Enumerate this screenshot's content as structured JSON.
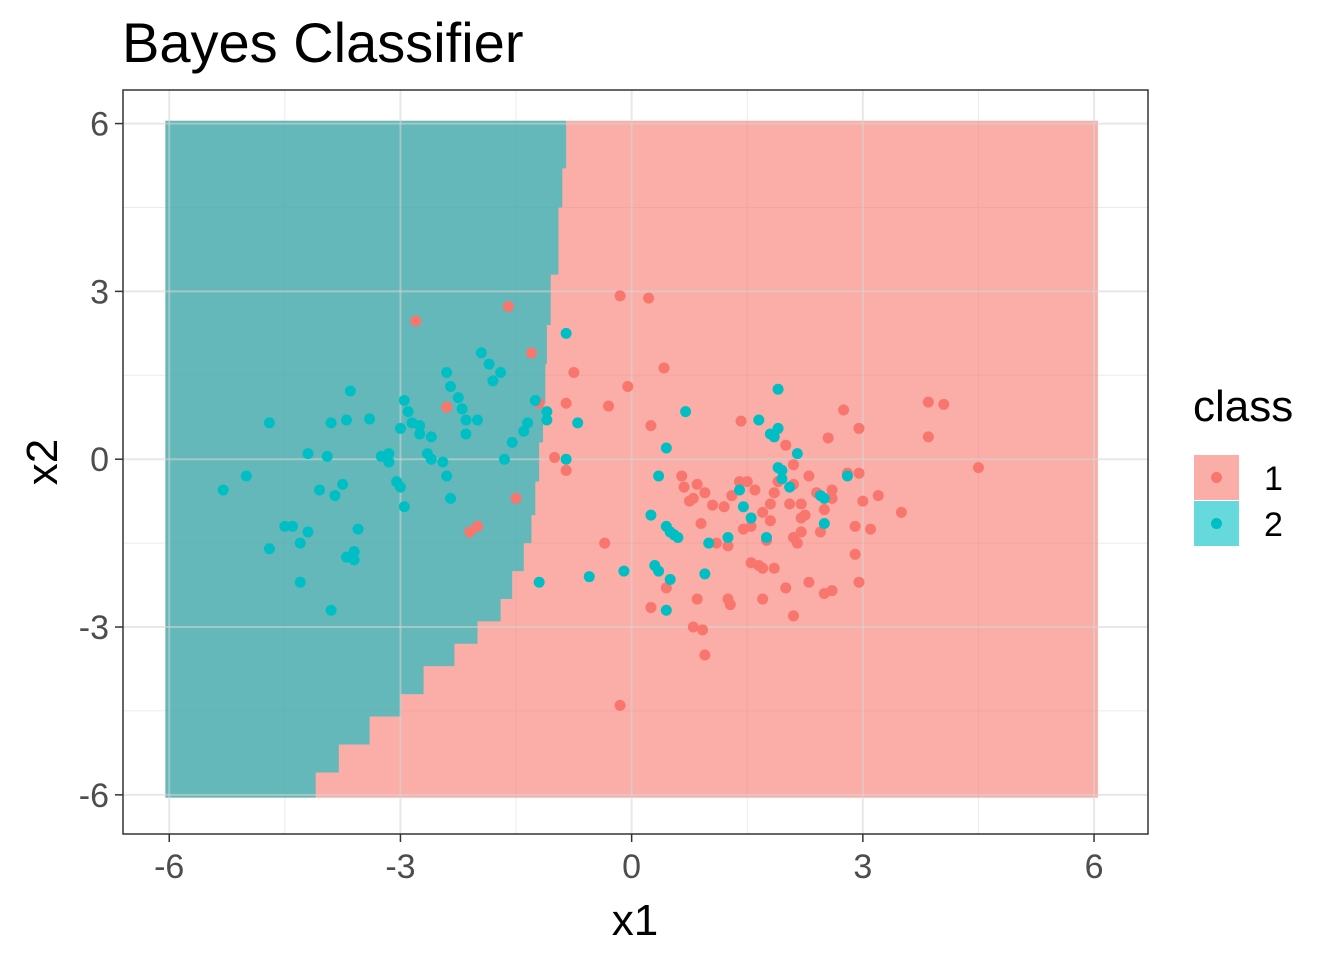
{
  "chart_data": {
    "type": "scatter",
    "title": "Bayes Classifier",
    "xlabel": "x1",
    "ylabel": "x2",
    "xlim": [
      -6.6,
      6.7
    ],
    "ylim": [
      -6.7,
      6.6
    ],
    "xticks": [
      -6,
      -3,
      0,
      3,
      6
    ],
    "yticks": [
      -6,
      -3,
      0,
      3,
      6
    ],
    "xtick_labels": [
      "-6",
      "-3",
      "0",
      "3",
      "6"
    ],
    "ytick_labels": [
      "-6",
      "-3",
      "0",
      "3",
      "6"
    ],
    "grid": true,
    "legend": {
      "title": "class",
      "position": "right",
      "entries": [
        {
          "label": "1",
          "color": "#F8766D"
        },
        {
          "label": "2",
          "color": "#00BFC4"
        }
      ]
    },
    "background_regions": {
      "extent": {
        "x": [
          -6.05,
          6.05
        ],
        "y": [
          -6.05,
          6.05
        ]
      },
      "class1_fill": "#F8766D",
      "class2_fill": "#00BFC4",
      "fill_opacity": 0.6,
      "boundary": [
        [
          -4.1,
          -6.05
        ],
        [
          -3.8,
          -5.6
        ],
        [
          -3.4,
          -5.1
        ],
        [
          -3.0,
          -4.6
        ],
        [
          -2.7,
          -4.2
        ],
        [
          -2.3,
          -3.7
        ],
        [
          -2.0,
          -3.3
        ],
        [
          -1.7,
          -2.9
        ],
        [
          -1.55,
          -2.5
        ],
        [
          -1.4,
          -2.0
        ],
        [
          -1.3,
          -1.5
        ],
        [
          -1.25,
          -1.0
        ],
        [
          -1.2,
          -0.4
        ],
        [
          -1.15,
          0.3
        ],
        [
          -1.12,
          1.0
        ],
        [
          -1.1,
          1.7
        ],
        [
          -1.05,
          2.4
        ],
        [
          -0.95,
          3.3
        ],
        [
          -0.9,
          4.5
        ],
        [
          -0.85,
          5.2
        ],
        [
          -0.8,
          6.05
        ]
      ]
    },
    "series": [
      {
        "name": "1",
        "color": "#F8766D",
        "points": [
          [
            -2.8,
            2.47
          ],
          [
            -1.6,
            2.73
          ],
          [
            -1.3,
            1.9
          ],
          [
            -0.75,
            1.55
          ],
          [
            -0.15,
            2.92
          ],
          [
            0.22,
            2.88
          ],
          [
            -0.05,
            1.3
          ],
          [
            0.42,
            1.63
          ],
          [
            -1.2,
            1.0
          ],
          [
            -0.85,
            1.0
          ],
          [
            -0.3,
            0.95
          ],
          [
            -2.4,
            0.93
          ],
          [
            -1.0,
            0.03
          ],
          [
            -0.85,
            -0.2
          ],
          [
            -1.5,
            -0.7
          ],
          [
            -2.1,
            -1.3
          ],
          [
            -2.0,
            -1.2
          ],
          [
            -0.35,
            -1.5
          ],
          [
            -0.15,
            -4.4
          ],
          [
            0.25,
            0.6
          ],
          [
            0.25,
            -2.65
          ],
          [
            0.45,
            -2.3
          ],
          [
            0.8,
            -3.0
          ],
          [
            0.92,
            -3.05
          ],
          [
            0.95,
            -3.5
          ],
          [
            0.85,
            -2.5
          ],
          [
            1.25,
            -2.5
          ],
          [
            1.28,
            -2.6
          ],
          [
            1.55,
            -1.85
          ],
          [
            1.7,
            -2.5
          ],
          [
            2.1,
            -2.8
          ],
          [
            2.3,
            -2.2
          ],
          [
            2.5,
            -2.4
          ],
          [
            2.6,
            -2.35
          ],
          [
            2.95,
            -2.2
          ],
          [
            1.65,
            -1.9
          ],
          [
            1.85,
            -1.95
          ],
          [
            2.0,
            -2.3
          ],
          [
            2.45,
            -1.3
          ],
          [
            2.9,
            -1.7
          ],
          [
            3.1,
            -1.25
          ],
          [
            2.9,
            -1.2
          ],
          [
            3.0,
            -0.75
          ],
          [
            3.2,
            -0.65
          ],
          [
            3.5,
            -0.95
          ],
          [
            2.4,
            -0.6
          ],
          [
            2.6,
            -0.55
          ],
          [
            2.6,
            -0.7
          ],
          [
            2.5,
            -0.9
          ],
          [
            2.2,
            -1.05
          ],
          [
            2.1,
            -1.4
          ],
          [
            2.2,
            -1.3
          ],
          [
            2.05,
            -0.8
          ],
          [
            1.9,
            -0.4
          ],
          [
            2.0,
            0.25
          ],
          [
            2.1,
            -0.1
          ],
          [
            2.3,
            -0.3
          ],
          [
            2.55,
            0.38
          ],
          [
            2.75,
            0.88
          ],
          [
            2.95,
            0.55
          ],
          [
            2.8,
            -0.25
          ],
          [
            2.95,
            -0.25
          ],
          [
            3.85,
            0.4
          ],
          [
            3.85,
            1.02
          ],
          [
            4.05,
            0.98
          ],
          [
            4.5,
            -0.15
          ],
          [
            1.42,
            0.68
          ],
          [
            1.4,
            -0.4
          ],
          [
            1.5,
            -0.4
          ],
          [
            1.3,
            -0.65
          ],
          [
            1.2,
            -0.85
          ],
          [
            1.05,
            -0.82
          ],
          [
            0.9,
            -1.15
          ],
          [
            0.75,
            -0.75
          ],
          [
            0.8,
            -0.7
          ],
          [
            0.65,
            -0.3
          ],
          [
            0.68,
            -0.5
          ],
          [
            0.85,
            -0.45
          ],
          [
            0.95,
            -0.6
          ],
          [
            1.1,
            -1.5
          ],
          [
            1.25,
            -1.55
          ],
          [
            1.45,
            -1.25
          ],
          [
            1.55,
            -1.2
          ],
          [
            1.75,
            -1.45
          ],
          [
            1.8,
            -1.1
          ],
          [
            1.8,
            -0.8
          ],
          [
            1.85,
            -0.6
          ],
          [
            2.2,
            -0.8
          ],
          [
            2.25,
            -1.0
          ],
          [
            1.7,
            -1.95
          ],
          [
            1.7,
            -0.95
          ],
          [
            2.15,
            -1.5
          ],
          [
            2.1,
            -0.45
          ],
          [
            1.6,
            -0.55
          ]
        ]
      },
      {
        "name": "2",
        "color": "#00BFC4",
        "points": [
          [
            -5.3,
            -0.55
          ],
          [
            -5.0,
            -0.3
          ],
          [
            -4.7,
            0.65
          ],
          [
            -4.7,
            -1.6
          ],
          [
            -4.5,
            -1.2
          ],
          [
            -4.4,
            -1.2
          ],
          [
            -4.3,
            -1.5
          ],
          [
            -4.3,
            -2.2
          ],
          [
            -4.2,
            -1.3
          ],
          [
            -4.2,
            0.1
          ],
          [
            -4.05,
            -0.55
          ],
          [
            -3.95,
            0.05
          ],
          [
            -3.9,
            0.65
          ],
          [
            -3.9,
            -2.7
          ],
          [
            -3.85,
            -0.65
          ],
          [
            -3.7,
            0.7
          ],
          [
            -3.75,
            -0.45
          ],
          [
            -3.65,
            1.22
          ],
          [
            -3.55,
            -1.25
          ],
          [
            -3.6,
            -1.65
          ],
          [
            -3.6,
            -1.8
          ],
          [
            -3.7,
            -1.75
          ],
          [
            -3.4,
            0.72
          ],
          [
            -3.25,
            0.05
          ],
          [
            -3.15,
            0.1
          ],
          [
            -3.15,
            -0.05
          ],
          [
            -3.05,
            -0.4
          ],
          [
            -3.0,
            -0.5
          ],
          [
            -2.95,
            -0.85
          ],
          [
            -3.0,
            0.55
          ],
          [
            -2.95,
            1.05
          ],
          [
            -2.9,
            0.85
          ],
          [
            -2.85,
            0.65
          ],
          [
            -2.75,
            0.6
          ],
          [
            -2.75,
            0.45
          ],
          [
            -2.6,
            0.4
          ],
          [
            -2.65,
            0.1
          ],
          [
            -2.6,
            0.0
          ],
          [
            -2.45,
            -0.05
          ],
          [
            -2.4,
            -0.3
          ],
          [
            -2.35,
            -0.7
          ],
          [
            -2.4,
            1.55
          ],
          [
            -2.35,
            1.3
          ],
          [
            -2.25,
            1.1
          ],
          [
            -2.2,
            0.9
          ],
          [
            -2.15,
            0.7
          ],
          [
            -2.15,
            0.45
          ],
          [
            -2.0,
            0.7
          ],
          [
            -1.95,
            1.9
          ],
          [
            -1.85,
            1.7
          ],
          [
            -1.8,
            1.4
          ],
          [
            -1.7,
            1.55
          ],
          [
            -1.65,
            0.0
          ],
          [
            -1.55,
            0.3
          ],
          [
            -1.4,
            0.5
          ],
          [
            -1.35,
            0.65
          ],
          [
            -1.25,
            1.05
          ],
          [
            -1.1,
            0.85
          ],
          [
            -1.1,
            0.7
          ],
          [
            -0.85,
            2.25
          ],
          [
            -0.85,
            0.0
          ],
          [
            -0.7,
            0.65
          ],
          [
            -1.2,
            -2.2
          ],
          [
            -0.55,
            -2.1
          ],
          [
            -0.1,
            -2.0
          ],
          [
            0.25,
            -1.0
          ],
          [
            0.3,
            -1.9
          ],
          [
            0.35,
            -2.0
          ],
          [
            0.35,
            -0.3
          ],
          [
            0.45,
            -1.2
          ],
          [
            0.5,
            -1.3
          ],
          [
            0.55,
            -1.35
          ],
          [
            0.6,
            -1.4
          ],
          [
            0.5,
            -2.15
          ],
          [
            0.45,
            -2.7
          ],
          [
            0.45,
            0.2
          ],
          [
            0.7,
            0.85
          ],
          [
            0.95,
            -2.05
          ],
          [
            1.0,
            -1.5
          ],
          [
            1.25,
            -1.4
          ],
          [
            1.4,
            -0.55
          ],
          [
            1.45,
            -0.85
          ],
          [
            1.55,
            -1.05
          ],
          [
            1.65,
            0.7
          ],
          [
            1.8,
            0.45
          ],
          [
            1.85,
            0.4
          ],
          [
            1.9,
            0.55
          ],
          [
            1.9,
            -0.15
          ],
          [
            1.95,
            -0.2
          ],
          [
            1.95,
            -0.35
          ],
          [
            1.9,
            1.25
          ],
          [
            2.05,
            -0.5
          ],
          [
            2.15,
            0.1
          ],
          [
            2.45,
            -0.65
          ],
          [
            2.5,
            -0.7
          ],
          [
            2.5,
            -1.15
          ],
          [
            2.8,
            -0.3
          ],
          [
            1.75,
            -1.4
          ]
        ]
      }
    ]
  }
}
